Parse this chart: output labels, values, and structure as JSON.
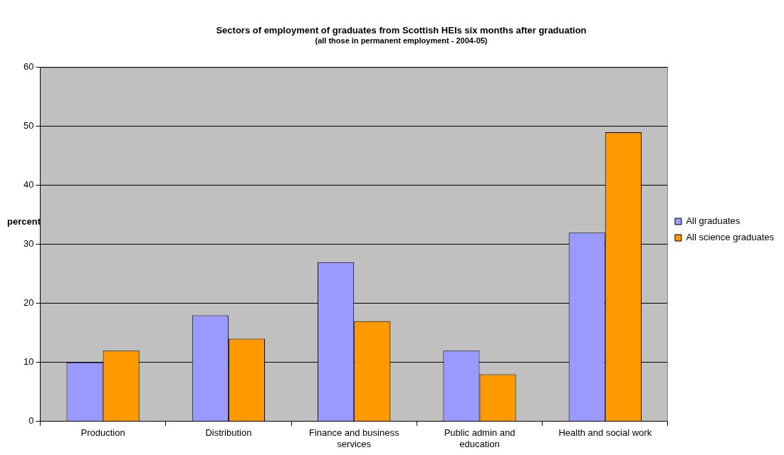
{
  "chart_data": {
    "type": "bar",
    "title": "Sectors of employment of graduates from Scottish HEIs six months after graduation",
    "subtitle": "(all those in permanent employment - 2004-05)",
    "ylabel": "percent",
    "categories": [
      "Production",
      "Distribution",
      "Finance and business services",
      "Public admin and education",
      "Health and social work"
    ],
    "series": [
      {
        "name": "All graduates",
        "color": "#9999ff",
        "values": [
          10,
          18,
          27,
          12,
          32
        ]
      },
      {
        "name": "All science graduates",
        "color": "#ff9900",
        "values": [
          12,
          14,
          17,
          8,
          49
        ]
      }
    ],
    "ylim": [
      0,
      60
    ],
    "yticks": [
      0,
      10,
      20,
      30,
      40,
      50,
      60
    ],
    "grid": "y",
    "legend": "right"
  }
}
